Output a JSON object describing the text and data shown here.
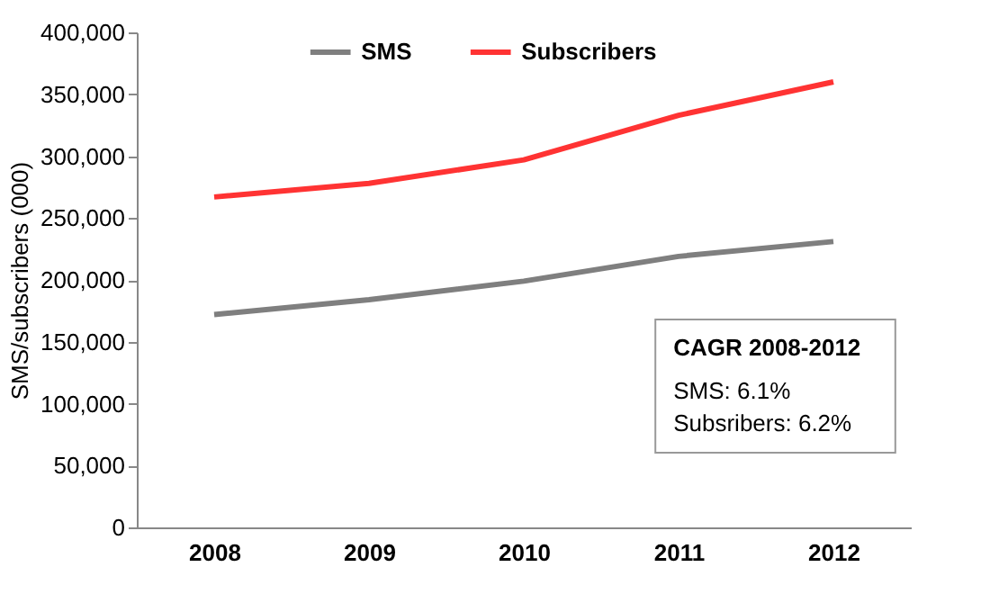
{
  "chart_data": {
    "type": "line",
    "ylabel": "SMS/subscribers (000)",
    "categories": [
      "2008",
      "2009",
      "2010",
      "2011",
      "2012"
    ],
    "series": [
      {
        "name": "SMS",
        "color": "#7f7f7f",
        "values": [
          172000,
          184000,
          199000,
          219000,
          231000
        ]
      },
      {
        "name": "Subscribers",
        "color": "#ff3333",
        "values": [
          267000,
          278000,
          297000,
          333000,
          360000
        ]
      }
    ],
    "ylim": [
      0,
      400000
    ],
    "yticks": [
      0,
      {
        "value": 50000,
        "label": "50,000"
      },
      {
        "value": 100000,
        "label": "100,000"
      },
      {
        "value": 150000,
        "label": "150,000"
      },
      {
        "value": 200000,
        "label": "200,000"
      },
      {
        "value": 250000,
        "label": "250,000"
      },
      {
        "value": 300000,
        "label": "300,000"
      },
      {
        "value": 350000,
        "label": "350,000"
      },
      {
        "value": 400000,
        "label": "400,000"
      }
    ],
    "annotations": [
      "CAGR 2008-2012",
      "SMS: 6.1%",
      "Subsribers: 6.2%"
    ],
    "legend": "top",
    "grid": false,
    "marker": "none",
    "line_style": "solid"
  }
}
